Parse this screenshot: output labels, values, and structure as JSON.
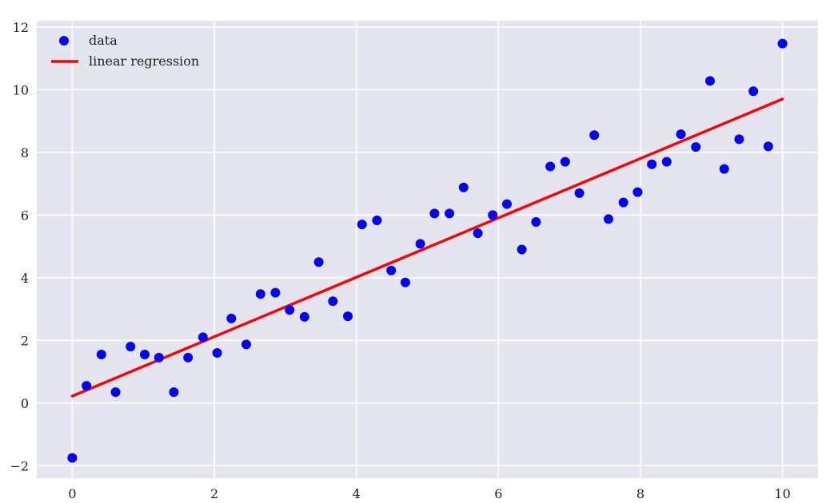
{
  "chart_data": {
    "type": "scatter",
    "title": "",
    "xlabel": "",
    "ylabel": "",
    "xlim": [
      -0.5,
      10.5
    ],
    "ylim": [
      -2.4,
      12.2
    ],
    "x_ticks": [
      0,
      2,
      4,
      6,
      8,
      10
    ],
    "y_ticks": [
      -2,
      0,
      2,
      4,
      6,
      8,
      10,
      12
    ],
    "x_tick_labels": [
      "0",
      "2",
      "4",
      "6",
      "8",
      "10"
    ],
    "y_tick_labels": [
      "−2",
      "0",
      "2",
      "4",
      "6",
      "8",
      "10",
      "12"
    ],
    "grid": true,
    "legend_position": "top-left",
    "series": [
      {
        "name": "data",
        "kind": "scatter",
        "color": "#0000ff",
        "points": [
          [
            0.0,
            -1.75
          ],
          [
            0.2,
            0.55
          ],
          [
            0.41,
            1.55
          ],
          [
            0.61,
            0.35
          ],
          [
            0.82,
            1.8
          ],
          [
            1.02,
            1.55
          ],
          [
            1.22,
            1.45
          ],
          [
            1.43,
            0.35
          ],
          [
            1.63,
            1.45
          ],
          [
            1.84,
            2.1
          ],
          [
            2.04,
            1.6
          ],
          [
            2.24,
            2.7
          ],
          [
            2.45,
            1.87
          ],
          [
            2.65,
            3.48
          ],
          [
            2.86,
            3.52
          ],
          [
            3.06,
            2.97
          ],
          [
            3.27,
            2.75
          ],
          [
            3.47,
            4.5
          ],
          [
            3.67,
            3.25
          ],
          [
            3.88,
            2.77
          ],
          [
            4.08,
            5.7
          ],
          [
            4.29,
            5.83
          ],
          [
            4.49,
            4.23
          ],
          [
            4.69,
            3.85
          ],
          [
            4.9,
            5.08
          ],
          [
            5.1,
            6.05
          ],
          [
            5.31,
            6.05
          ],
          [
            5.51,
            6.88
          ],
          [
            5.71,
            5.42
          ],
          [
            5.92,
            6.0
          ],
          [
            6.12,
            6.35
          ],
          [
            6.33,
            4.9
          ],
          [
            6.53,
            5.78
          ],
          [
            6.73,
            7.55
          ],
          [
            6.94,
            7.7
          ],
          [
            7.14,
            6.7
          ],
          [
            7.35,
            8.55
          ],
          [
            7.55,
            5.87
          ],
          [
            7.76,
            6.4
          ],
          [
            7.96,
            6.73
          ],
          [
            8.16,
            7.62
          ],
          [
            8.37,
            7.7
          ],
          [
            8.57,
            8.58
          ],
          [
            8.78,
            8.17
          ],
          [
            8.98,
            10.28
          ],
          [
            9.18,
            7.47
          ],
          [
            9.39,
            8.42
          ],
          [
            9.59,
            9.95
          ],
          [
            9.8,
            8.19
          ],
          [
            10.0,
            11.47
          ]
        ]
      },
      {
        "name": "linear regression",
        "kind": "line",
        "color": "#ff0000",
        "points": [
          [
            0.0,
            0.22
          ],
          [
            10.0,
            9.7
          ]
        ]
      }
    ]
  }
}
